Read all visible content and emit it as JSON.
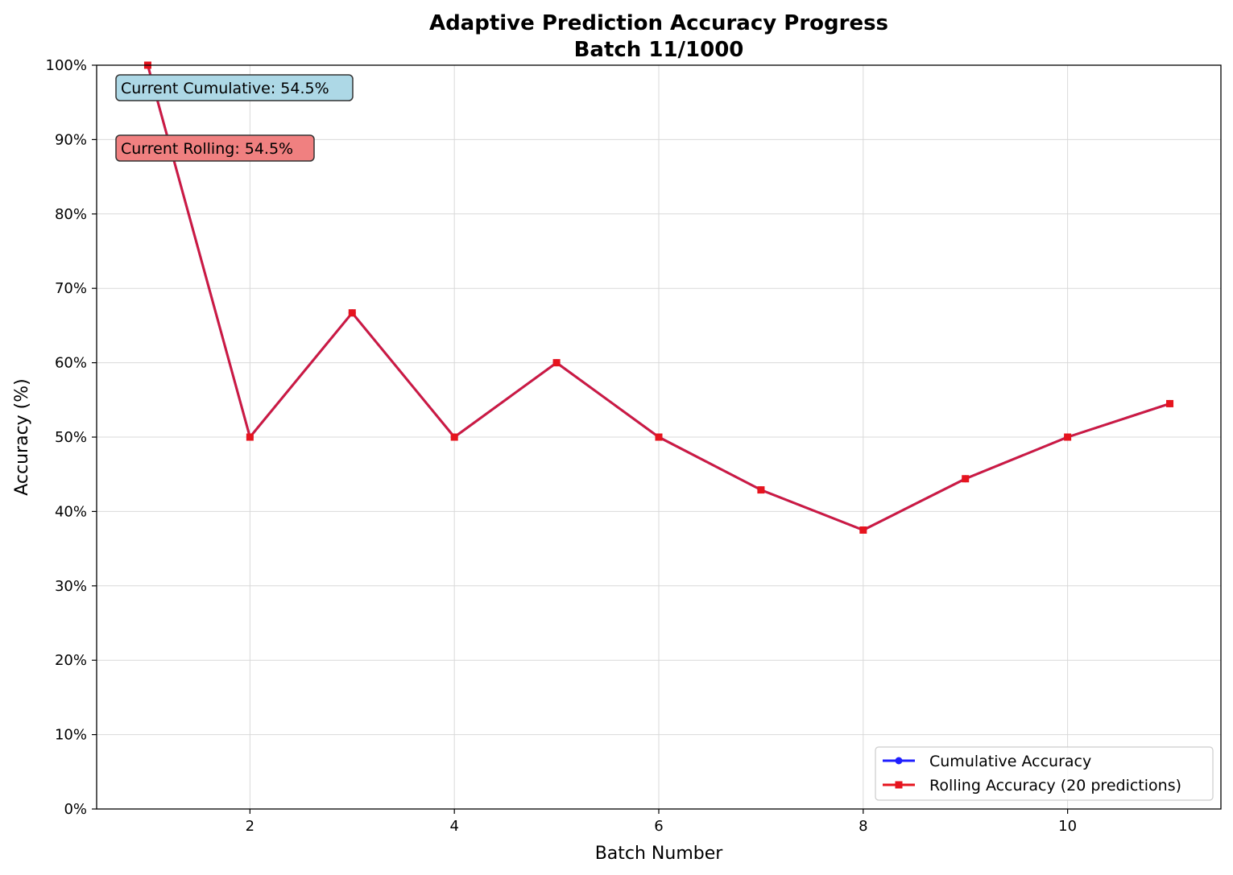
{
  "chart_data": {
    "type": "line",
    "title": "Adaptive Prediction Accuracy Progress",
    "subtitle": "Batch 11/1000",
    "xlabel": "Batch Number",
    "ylabel": "Accuracy (%)",
    "xlim": [
      0.5,
      11.5
    ],
    "ylim": [
      0,
      100
    ],
    "x_ticks": [
      2,
      4,
      6,
      8,
      10
    ],
    "y_ticks": [
      0,
      10,
      20,
      30,
      40,
      50,
      60,
      70,
      80,
      90,
      100
    ],
    "y_tick_labels": [
      "0%",
      "10%",
      "20%",
      "30%",
      "40%",
      "50%",
      "60%",
      "70%",
      "80%",
      "90%",
      "100%"
    ],
    "x": [
      1,
      2,
      3,
      4,
      5,
      6,
      7,
      8,
      9,
      10,
      11
    ],
    "grid": true,
    "legend_position": "lower-right",
    "series": [
      {
        "name": "Cumulative Accuracy",
        "color": "#1f1fff",
        "marker": "circle",
        "values": [
          100,
          50,
          66.7,
          50,
          60,
          50,
          42.9,
          37.5,
          44.4,
          50,
          54.5
        ]
      },
      {
        "name": "Rolling Accuracy (20 predictions)",
        "color": "#e6141e",
        "marker": "square",
        "values": [
          100,
          50,
          66.7,
          50,
          60,
          50,
          42.9,
          37.5,
          44.4,
          50,
          54.5
        ]
      }
    ],
    "annotations": [
      {
        "text": "Current Cumulative: 54.5%",
        "bg": "#add8e6"
      },
      {
        "text": "Current Rolling: 54.5%",
        "bg": "#f08080"
      }
    ]
  }
}
